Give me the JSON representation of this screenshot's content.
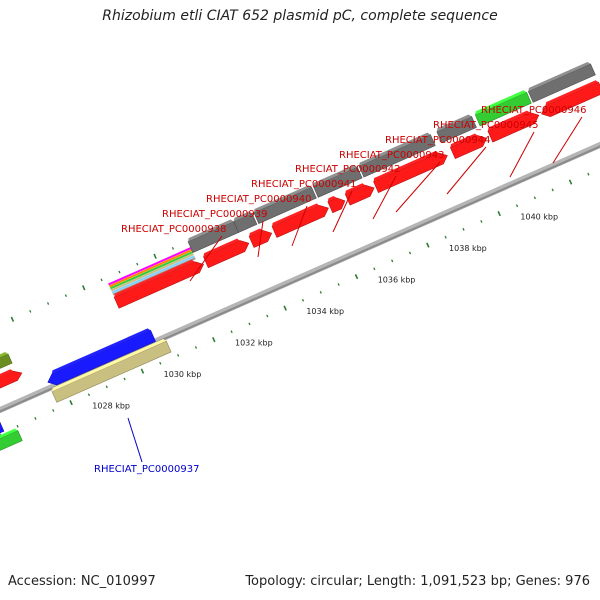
{
  "header": {
    "title": "Rhizobium etli CIAT 652 plasmid pC, complete sequence"
  },
  "footer": {
    "accession": "Accession: NC_010997",
    "summary": "Topology: circular; Length: 1,091,523 bp; Genes: 976"
  },
  "map": {
    "colors": {
      "backbone": "#8a8a8a",
      "gene_grey": "#6f6f6f",
      "cds_red": "#ff1a1a",
      "blue": "#1a1aff",
      "tan": "#c8bf80",
      "green": "#33cc33",
      "olive": "#6b8e23",
      "tick": "#2e7d32",
      "label_red": "#cc0000",
      "label_blue": "#0000cc"
    },
    "tick_labels": [
      "1028 kbp",
      "1030 kbp",
      "1032 kbp",
      "1034 kbp",
      "1036 kbp",
      "1038 kbp",
      "1040 kbp"
    ],
    "gene_labels": [
      {
        "text": "RHECIAT_PC0000938",
        "color": "red"
      },
      {
        "text": "RHECIAT_PC0000939",
        "color": "red"
      },
      {
        "text": "RHECIAT_PC0000940",
        "color": "red"
      },
      {
        "text": "RHECIAT_PC0000941",
        "color": "red"
      },
      {
        "text": "RHECIAT_PC0000942",
        "color": "red"
      },
      {
        "text": "RHECIAT_PC0000943",
        "color": "red"
      },
      {
        "text": "RHECIAT_PC0000944",
        "color": "red"
      },
      {
        "text": "RHECIAT_PC0000945",
        "color": "red"
      },
      {
        "text": "RHECIAT_PC0000946",
        "color": "red"
      },
      {
        "text": "RHECIAT_PC0000937",
        "color": "blue"
      }
    ]
  }
}
